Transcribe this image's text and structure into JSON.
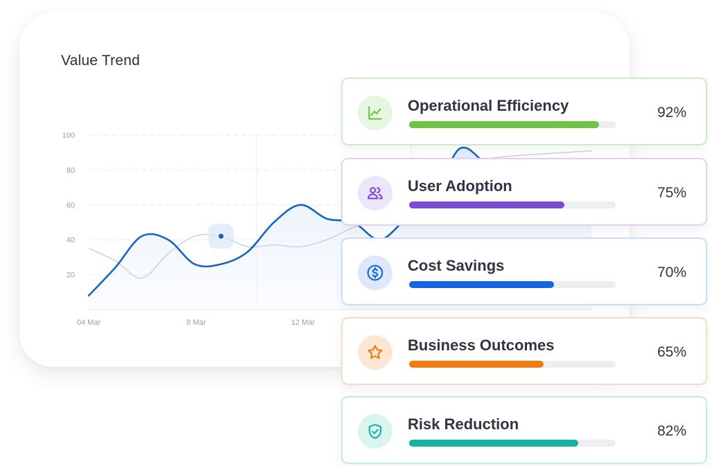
{
  "chart_data": {
    "type": "line",
    "title": "Value Trend",
    "x_tick_labels": [
      "04 Mar",
      "8 Mar",
      "12 Mar"
    ],
    "y_ticks": [
      100,
      80,
      60,
      40,
      20
    ],
    "ylim": [
      0,
      100
    ],
    "grid": true,
    "series": [
      {
        "color": "#1565c0",
        "x": [
          0,
          1,
          2,
          3,
          4,
          5,
          6,
          7,
          8,
          9,
          10,
          11,
          12,
          13,
          14,
          15,
          16,
          17,
          18,
          19
        ],
        "values": [
          8,
          24,
          42,
          40,
          26,
          26,
          33,
          50,
          60,
          52,
          50,
          40,
          52,
          62,
          92,
          84,
          76,
          70,
          70,
          70
        ]
      },
      {
        "color": "#cdd3dc",
        "x": [
          0,
          1,
          2,
          3,
          4,
          5,
          6,
          7,
          8,
          9,
          10,
          11,
          12,
          13,
          14,
          15,
          16,
          17,
          18,
          19
        ],
        "values": [
          35,
          28,
          18,
          32,
          42,
          42,
          36,
          37,
          36,
          40,
          47,
          52,
          60,
          68,
          80,
          86,
          88,
          89,
          90,
          91
        ]
      }
    ],
    "highlighted_point": {
      "x": 5,
      "y": 42
    }
  },
  "metrics": [
    {
      "label": "Operational Efficiency",
      "value": "92%",
      "percent": 92,
      "icon": "line-chart-icon",
      "color": "#6cc644",
      "border": "#cdebc4",
      "icon_bg": "#e6f6e0"
    },
    {
      "label": "User Adoption",
      "value": "75%",
      "percent": 75,
      "icon": "users-icon",
      "color": "#7b4bd6",
      "border": "#ddd2f4",
      "icon_bg": "#ede5fb"
    },
    {
      "label": "Cost Savings",
      "value": "70%",
      "percent": 70,
      "icon": "dollar-icon",
      "color": "#1566e0",
      "border": "#c9dcf6",
      "icon_bg": "#dde9fb"
    },
    {
      "label": "Business Outcomes",
      "value": "65%",
      "percent": 65,
      "icon": "star-icon",
      "color": "#f27b12",
      "border": "#f7dcc4",
      "icon_bg": "#fde6d3"
    },
    {
      "label": "Risk Reduction",
      "value": "82%",
      "percent": 82,
      "icon": "shield-check-icon",
      "color": "#14b3a5",
      "border": "#c4ebe7",
      "icon_bg": "#dcf4f1"
    }
  ]
}
